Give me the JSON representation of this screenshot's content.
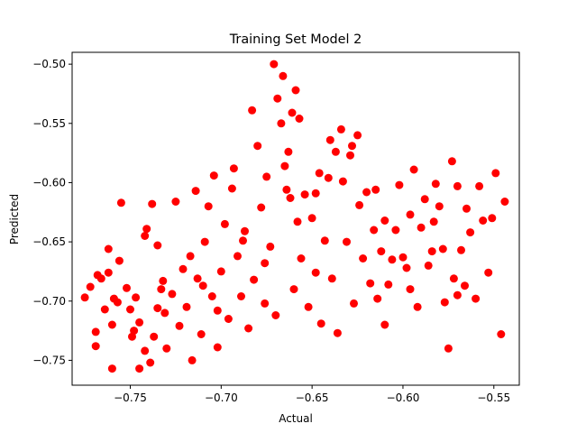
{
  "chart_data": {
    "type": "scatter",
    "title": "Training Set Model 2",
    "xlabel": "Actual",
    "ylabel": "Predicted",
    "xlim": [
      -0.782,
      -0.536
    ],
    "ylim": [
      -0.771,
      -0.49
    ],
    "xticks": [
      -0.75,
      -0.7,
      -0.65,
      -0.6,
      -0.55
    ],
    "xtick_labels": [
      "−0.75",
      "−0.70",
      "−0.65",
      "−0.60",
      "−0.55"
    ],
    "yticks": [
      -0.75,
      -0.7,
      -0.65,
      -0.6,
      -0.55,
      -0.5
    ],
    "ytick_labels": [
      "−0.75",
      "−0.70",
      "−0.65",
      "−0.60",
      "−0.55",
      "−0.50"
    ],
    "grid": false,
    "legend": "none",
    "series": [
      {
        "color": "#ff0000",
        "marker": "circle",
        "points": [
          [
            -0.775,
            -0.697
          ],
          [
            -0.772,
            -0.688
          ],
          [
            -0.768,
            -0.678
          ],
          [
            -0.769,
            -0.726
          ],
          [
            -0.769,
            -0.738
          ],
          [
            -0.766,
            -0.681
          ],
          [
            -0.764,
            -0.707
          ],
          [
            -0.762,
            -0.656
          ],
          [
            -0.762,
            -0.676
          ],
          [
            -0.76,
            -0.72
          ],
          [
            -0.76,
            -0.757
          ],
          [
            -0.757,
            -0.701
          ],
          [
            -0.756,
            -0.666
          ],
          [
            -0.755,
            -0.617
          ],
          [
            -0.752,
            -0.689
          ],
          [
            -0.75,
            -0.707
          ],
          [
            -0.749,
            -0.73
          ],
          [
            -0.747,
            -0.697
          ],
          [
            -0.745,
            -0.757
          ],
          [
            -0.745,
            -0.718
          ],
          [
            -0.742,
            -0.742
          ],
          [
            -0.742,
            -0.645
          ],
          [
            -0.741,
            -0.639
          ],
          [
            -0.739,
            -0.752
          ],
          [
            -0.738,
            -0.618
          ],
          [
            -0.737,
            -0.73
          ],
          [
            -0.735,
            -0.653
          ],
          [
            -0.735,
            -0.706
          ],
          [
            -0.732,
            -0.683
          ],
          [
            -0.73,
            -0.74
          ],
          [
            -0.727,
            -0.694
          ],
          [
            -0.725,
            -0.616
          ],
          [
            -0.723,
            -0.721
          ],
          [
            -0.721,
            -0.673
          ],
          [
            -0.719,
            -0.705
          ],
          [
            -0.716,
            -0.75
          ],
          [
            -0.714,
            -0.607
          ],
          [
            -0.713,
            -0.681
          ],
          [
            -0.711,
            -0.728
          ],
          [
            -0.709,
            -0.65
          ],
          [
            -0.707,
            -0.62
          ],
          [
            -0.705,
            -0.696
          ],
          [
            -0.704,
            -0.594
          ],
          [
            -0.702,
            -0.739
          ],
          [
            -0.7,
            -0.675
          ],
          [
            -0.698,
            -0.635
          ],
          [
            -0.696,
            -0.715
          ],
          [
            -0.694,
            -0.605
          ],
          [
            -0.693,
            -0.588
          ],
          [
            -0.691,
            -0.662
          ],
          [
            -0.689,
            -0.696
          ],
          [
            -0.687,
            -0.641
          ],
          [
            -0.685,
            -0.723
          ],
          [
            -0.683,
            -0.539
          ],
          [
            -0.682,
            -0.682
          ],
          [
            -0.68,
            -0.569
          ],
          [
            -0.678,
            -0.621
          ],
          [
            -0.676,
            -0.702
          ],
          [
            -0.675,
            -0.595
          ],
          [
            -0.673,
            -0.654
          ],
          [
            -0.671,
            -0.5
          ],
          [
            -0.67,
            -0.712
          ],
          [
            -0.669,
            -0.529
          ],
          [
            -0.667,
            -0.55
          ],
          [
            -0.666,
            -0.51
          ],
          [
            -0.665,
            -0.586
          ],
          [
            -0.664,
            -0.606
          ],
          [
            -0.663,
            -0.574
          ],
          [
            -0.662,
            -0.613
          ],
          [
            -0.661,
            -0.541
          ],
          [
            -0.66,
            -0.69
          ],
          [
            -0.659,
            -0.522
          ],
          [
            -0.658,
            -0.633
          ],
          [
            -0.657,
            -0.546
          ],
          [
            -0.656,
            -0.664
          ],
          [
            -0.654,
            -0.61
          ],
          [
            -0.652,
            -0.705
          ],
          [
            -0.65,
            -0.63
          ],
          [
            -0.648,
            -0.676
          ],
          [
            -0.646,
            -0.592
          ],
          [
            -0.645,
            -0.719
          ],
          [
            -0.643,
            -0.649
          ],
          [
            -0.641,
            -0.596
          ],
          [
            -0.639,
            -0.681
          ],
          [
            -0.637,
            -0.574
          ],
          [
            -0.636,
            -0.727
          ],
          [
            -0.634,
            -0.555
          ],
          [
            -0.633,
            -0.599
          ],
          [
            -0.631,
            -0.65
          ],
          [
            -0.629,
            -0.577
          ],
          [
            -0.628,
            -0.569
          ],
          [
            -0.627,
            -0.702
          ],
          [
            -0.625,
            -0.56
          ],
          [
            -0.624,
            -0.619
          ],
          [
            -0.622,
            -0.664
          ],
          [
            -0.62,
            -0.608
          ],
          [
            -0.618,
            -0.685
          ],
          [
            -0.616,
            -0.64
          ],
          [
            -0.614,
            -0.698
          ],
          [
            -0.612,
            -0.658
          ],
          [
            -0.61,
            -0.632
          ],
          [
            -0.608,
            -0.686
          ],
          [
            -0.606,
            -0.665
          ],
          [
            -0.604,
            -0.64
          ],
          [
            -0.602,
            -0.602
          ],
          [
            -0.6,
            -0.663
          ],
          [
            -0.598,
            -0.672
          ],
          [
            -0.596,
            -0.69
          ],
          [
            -0.594,
            -0.589
          ],
          [
            -0.592,
            -0.705
          ],
          [
            -0.59,
            -0.638
          ],
          [
            -0.588,
            -0.614
          ],
          [
            -0.586,
            -0.67
          ],
          [
            -0.584,
            -0.658
          ],
          [
            -0.582,
            -0.601
          ],
          [
            -0.58,
            -0.62
          ],
          [
            -0.578,
            -0.656
          ],
          [
            -0.577,
            -0.701
          ],
          [
            -0.575,
            -0.74
          ],
          [
            -0.573,
            -0.582
          ],
          [
            -0.572,
            -0.681
          ],
          [
            -0.57,
            -0.603
          ],
          [
            -0.568,
            -0.657
          ],
          [
            -0.566,
            -0.687
          ],
          [
            -0.565,
            -0.622
          ],
          [
            -0.563,
            -0.642
          ],
          [
            -0.56,
            -0.698
          ],
          [
            -0.558,
            -0.603
          ],
          [
            -0.556,
            -0.632
          ],
          [
            -0.553,
            -0.676
          ],
          [
            -0.551,
            -0.63
          ],
          [
            -0.549,
            -0.592
          ],
          [
            -0.546,
            -0.728
          ],
          [
            -0.544,
            -0.616
          ],
          [
            -0.57,
            -0.695
          ],
          [
            -0.583,
            -0.633
          ],
          [
            -0.596,
            -0.627
          ],
          [
            -0.61,
            -0.72
          ],
          [
            -0.615,
            -0.606
          ],
          [
            -0.64,
            -0.564
          ],
          [
            -0.648,
            -0.609
          ],
          [
            -0.676,
            -0.668
          ],
          [
            -0.688,
            -0.649
          ],
          [
            -0.702,
            -0.708
          ],
          [
            -0.717,
            -0.662
          ],
          [
            -0.731,
            -0.71
          ],
          [
            -0.748,
            -0.725
          ],
          [
            -0.759,
            -0.698
          ],
          [
            -0.733,
            -0.69
          ],
          [
            -0.71,
            -0.687
          ]
        ]
      }
    ]
  }
}
